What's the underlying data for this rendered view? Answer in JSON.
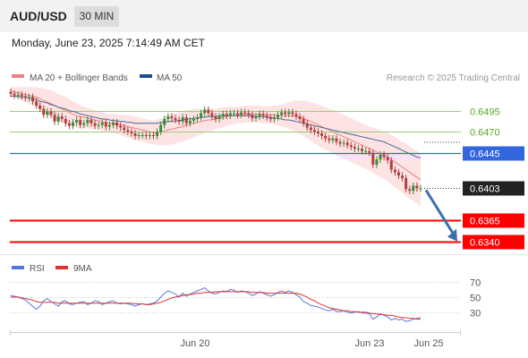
{
  "header": {
    "pair": "AUD/USD",
    "timeframe": "30 MIN",
    "datetime": "Monday, June 23, 2025 7:14:49 AM CET"
  },
  "colors": {
    "up": "#3a8a3a",
    "down": "#b04040",
    "ma20": "#f08080",
    "bands_fill": "#fde3e3",
    "ma50": "#4a6a9a",
    "rsi": "#5577dd",
    "rsi_ma": "#e03030",
    "support": "#ff0000",
    "pivot": "#3366dd",
    "resistance": "#9acd7a",
    "resistance_text": "#55aa22",
    "arrow": "#3a6fb0",
    "current": "#222222"
  },
  "chart_data": [
    {
      "type": "candlestick",
      "legend": [
        {
          "label": "MA 20 + Bollinger Bands",
          "color": "#f08080"
        },
        {
          "label": "MA 50",
          "color": "#1f4e8c"
        }
      ],
      "credit": "Research © 2025 Trading Central",
      "x_ticks": [
        "Jun 20",
        "Jun 23",
        "Jun 25"
      ],
      "ylim": [
        0.6326,
        0.652
      ],
      "levels": [
        {
          "label": "0.6495",
          "value": 0.6495,
          "kind": "resistance"
        },
        {
          "label": "0.6470",
          "value": 0.647,
          "kind": "resistance"
        },
        {
          "label": "0.6445",
          "value": 0.6445,
          "kind": "pivot"
        },
        {
          "label": "0.6403",
          "value": 0.6403,
          "kind": "current"
        },
        {
          "label": "0.6365",
          "value": 0.6365,
          "kind": "support"
        },
        {
          "label": "0.6340",
          "value": 0.634,
          "kind": "support"
        }
      ],
      "closes": [
        0.6515,
        0.6513,
        0.6514,
        0.6512,
        0.651,
        0.6511,
        0.6506,
        0.6501,
        0.6497,
        0.649,
        0.6494,
        0.649,
        0.6482,
        0.6488,
        0.6485,
        0.648,
        0.6477,
        0.6481,
        0.6484,
        0.6478,
        0.648,
        0.6484,
        0.648,
        0.6477,
        0.6478,
        0.6481,
        0.6476,
        0.6478,
        0.6481,
        0.6477,
        0.6475,
        0.6472,
        0.647,
        0.6468,
        0.6465,
        0.6466,
        0.6466,
        0.6465,
        0.6466,
        0.6465,
        0.647,
        0.6478,
        0.6485,
        0.6488,
        0.6486,
        0.6484,
        0.6482,
        0.6487,
        0.648,
        0.6483,
        0.6485,
        0.6487,
        0.6492,
        0.6496,
        0.6492,
        0.6488,
        0.6485,
        0.6488,
        0.6491,
        0.6489,
        0.6492,
        0.6492,
        0.649,
        0.6493,
        0.6492,
        0.649,
        0.6486,
        0.6488,
        0.6491,
        0.6489,
        0.6487,
        0.6485,
        0.6487,
        0.649,
        0.6493,
        0.6491,
        0.6493,
        0.6491,
        0.6488,
        0.6485,
        0.648,
        0.6475,
        0.6472,
        0.647,
        0.6468,
        0.6465,
        0.6462,
        0.646,
        0.6462,
        0.6458,
        0.6456,
        0.6457,
        0.6454,
        0.6452,
        0.645,
        0.645,
        0.6447,
        0.6447,
        0.6445,
        0.6431,
        0.6437,
        0.6443,
        0.644,
        0.6436,
        0.6425,
        0.6422,
        0.6418,
        0.6415,
        0.6402,
        0.64,
        0.6406,
        0.6403,
        0.6403
      ],
      "projection": {
        "from": 0.6403,
        "to": 0.6338
      },
      "ma20": [
        0.6518,
        0.6517,
        0.6516,
        0.6515,
        0.6514,
        0.6513,
        0.6512,
        0.6511,
        0.6509,
        0.6507,
        0.6505,
        0.6503,
        0.6501,
        0.6499,
        0.6497,
        0.6495,
        0.6493,
        0.6491,
        0.6489,
        0.6488,
        0.6487,
        0.6486,
        0.6485,
        0.6484,
        0.6483,
        0.6482,
        0.6481,
        0.648,
        0.648,
        0.6479,
        0.6478,
        0.6477,
        0.6476,
        0.6475,
        0.6474,
        0.6473,
        0.6472,
        0.6471,
        0.647,
        0.6469,
        0.6469,
        0.647,
        0.6471,
        0.6472,
        0.6473,
        0.6474,
        0.6475,
        0.6476,
        0.6478,
        0.6479,
        0.648,
        0.6481,
        0.6482,
        0.6483,
        0.6484,
        0.6484,
        0.6485,
        0.6486,
        0.6487,
        0.6488,
        0.6489,
        0.6489,
        0.649,
        0.649,
        0.6491,
        0.6491,
        0.6491,
        0.6491,
        0.6491,
        0.649,
        0.649,
        0.649,
        0.649,
        0.6489,
        0.6489,
        0.6489,
        0.6489,
        0.6489,
        0.6488,
        0.6487,
        0.6486,
        0.6484,
        0.6482,
        0.648,
        0.6478,
        0.6476,
        0.6474,
        0.6472,
        0.647,
        0.6468,
        0.6466,
        0.6464,
        0.6462,
        0.646,
        0.6458,
        0.6456,
        0.6454,
        0.6452,
        0.645,
        0.6448,
        0.6446,
        0.6444,
        0.6442,
        0.644,
        0.6437,
        0.6434,
        0.6431,
        0.6428,
        0.6425,
        0.6422,
        0.6419,
        0.6416,
        0.6413
      ],
      "ma50": [
        0.6512,
        0.6512,
        0.6512,
        0.6511,
        0.6511,
        0.651,
        0.6509,
        0.6508,
        0.6506,
        0.6505,
        0.6504,
        0.6502,
        0.6501,
        0.6499,
        0.6498,
        0.6497,
        0.6495,
        0.6494,
        0.6493,
        0.6491,
        0.649,
        0.6489,
        0.6488,
        0.6487,
        0.6486,
        0.6485,
        0.6485,
        0.6484,
        0.6483,
        0.6483,
        0.6482,
        0.6482,
        0.6481,
        0.6481,
        0.648,
        0.648,
        0.648,
        0.648,
        0.648,
        0.648,
        0.648,
        0.6481,
        0.6481,
        0.6482,
        0.6482,
        0.6483,
        0.6483,
        0.6484,
        0.6485,
        0.6485,
        0.6486,
        0.6486,
        0.6487,
        0.6487,
        0.6488,
        0.6488,
        0.6488,
        0.6489,
        0.6489,
        0.6489,
        0.6489,
        0.6489,
        0.6489,
        0.6489,
        0.6489,
        0.6489,
        0.6489,
        0.6488,
        0.6488,
        0.6488,
        0.6487,
        0.6487,
        0.6486,
        0.6486,
        0.6485,
        0.6484,
        0.6484,
        0.6483,
        0.6482,
        0.6481,
        0.648,
        0.6479,
        0.6478,
        0.6477,
        0.6476,
        0.6475,
        0.6474,
        0.6473,
        0.6472,
        0.6471,
        0.647,
        0.6469,
        0.6468,
        0.6467,
        0.6466,
        0.6465,
        0.6464,
        0.6463,
        0.6462,
        0.6461,
        0.646,
        0.6459,
        0.6458,
        0.6456,
        0.6454,
        0.6452,
        0.645,
        0.6448,
        0.6446,
        0.6444,
        0.6442,
        0.644,
        0.6439
      ],
      "bands_width": [
        0.0006,
        0.0006,
        0.0007,
        0.0008,
        0.0009,
        0.001,
        0.0011,
        0.0012,
        0.0013,
        0.0014,
        0.0015,
        0.0016,
        0.0016,
        0.0016,
        0.0016,
        0.0016,
        0.0016,
        0.0015,
        0.0015,
        0.0014,
        0.0013,
        0.0012,
        0.0012,
        0.0011,
        0.0011,
        0.0011,
        0.0011,
        0.0011,
        0.0011,
        0.0012,
        0.0012,
        0.0013,
        0.0013,
        0.0014,
        0.0014,
        0.0014,
        0.0014,
        0.0014,
        0.0014,
        0.0014,
        0.0015,
        0.0016,
        0.0017,
        0.0018,
        0.0018,
        0.0018,
        0.0018,
        0.0018,
        0.0018,
        0.0017,
        0.0017,
        0.0016,
        0.0015,
        0.0014,
        0.0013,
        0.0013,
        0.0012,
        0.0012,
        0.0012,
        0.0011,
        0.0011,
        0.001,
        0.001,
        0.001,
        0.001,
        0.001,
        0.001,
        0.001,
        0.001,
        0.001,
        0.001,
        0.001,
        0.0011,
        0.0012,
        0.0013,
        0.0014,
        0.0016,
        0.0017,
        0.0019,
        0.002,
        0.0021,
        0.0022,
        0.0023,
        0.0024,
        0.0024,
        0.0025,
        0.0025,
        0.0025,
        0.0026,
        0.0026,
        0.0026,
        0.0026,
        0.0026,
        0.0026,
        0.0026,
        0.0026,
        0.0026,
        0.0026,
        0.0026,
        0.0027,
        0.0027,
        0.0028,
        0.0028,
        0.0029,
        0.0029,
        0.003,
        0.003,
        0.003,
        0.0031,
        0.0031,
        0.0031,
        0.0031,
        0.0031
      ]
    },
    {
      "type": "line",
      "legend": [
        {
          "label": "RSI",
          "color": "#5577dd"
        },
        {
          "label": "9MA",
          "color": "#e03030"
        }
      ],
      "y_ticks": [
        "70",
        "50",
        "30"
      ],
      "ylim": [
        10,
        85
      ],
      "series": [
        {
          "name": "RSI",
          "values": [
            52,
            51,
            50,
            48,
            46,
            42,
            38,
            34,
            38,
            45,
            48,
            44,
            41,
            38,
            44,
            45,
            41,
            40,
            42,
            43,
            44,
            40,
            42,
            45,
            44,
            40,
            42,
            44,
            45,
            42,
            41,
            42,
            41,
            40,
            38,
            40,
            41,
            40,
            41,
            42,
            45,
            50,
            55,
            58,
            56,
            54,
            50,
            55,
            51,
            54,
            56,
            58,
            60,
            62,
            58,
            55,
            54,
            56,
            58,
            57,
            60,
            59,
            56,
            58,
            57,
            55,
            52,
            54,
            57,
            55,
            53,
            51,
            53,
            56,
            58,
            56,
            58,
            56,
            53,
            50,
            44,
            42,
            39,
            38,
            37,
            35,
            33,
            32,
            34,
            31,
            31,
            32,
            30,
            29,
            30,
            31,
            29,
            29,
            28,
            21,
            24,
            28,
            26,
            24,
            20,
            22,
            20,
            21,
            18,
            19,
            21,
            22,
            23
          ]
        },
        {
          "name": "9MA",
          "values": [
            50,
            50,
            50,
            49,
            48,
            47,
            46,
            44,
            43,
            43,
            43,
            43,
            43,
            42,
            42,
            42,
            42,
            42,
            42,
            42,
            42,
            42,
            42,
            42,
            42,
            42,
            42,
            42,
            42,
            42,
            42,
            42,
            42,
            42,
            41,
            41,
            41,
            40,
            40,
            41,
            42,
            43,
            45,
            47,
            49,
            50,
            51,
            52,
            53,
            53,
            54,
            55,
            55,
            56,
            56,
            56,
            57,
            57,
            57,
            57,
            57,
            57,
            57,
            57,
            57,
            57,
            56,
            56,
            56,
            56,
            55,
            55,
            55,
            55,
            55,
            55,
            55,
            55,
            55,
            54,
            52,
            50,
            47,
            45,
            42,
            40,
            38,
            36,
            35,
            34,
            33,
            32,
            32,
            31,
            31,
            30,
            30,
            30,
            29,
            28,
            28,
            27,
            27,
            26,
            26,
            25,
            24,
            23,
            23,
            22,
            22,
            21,
            21
          ]
        }
      ]
    }
  ]
}
